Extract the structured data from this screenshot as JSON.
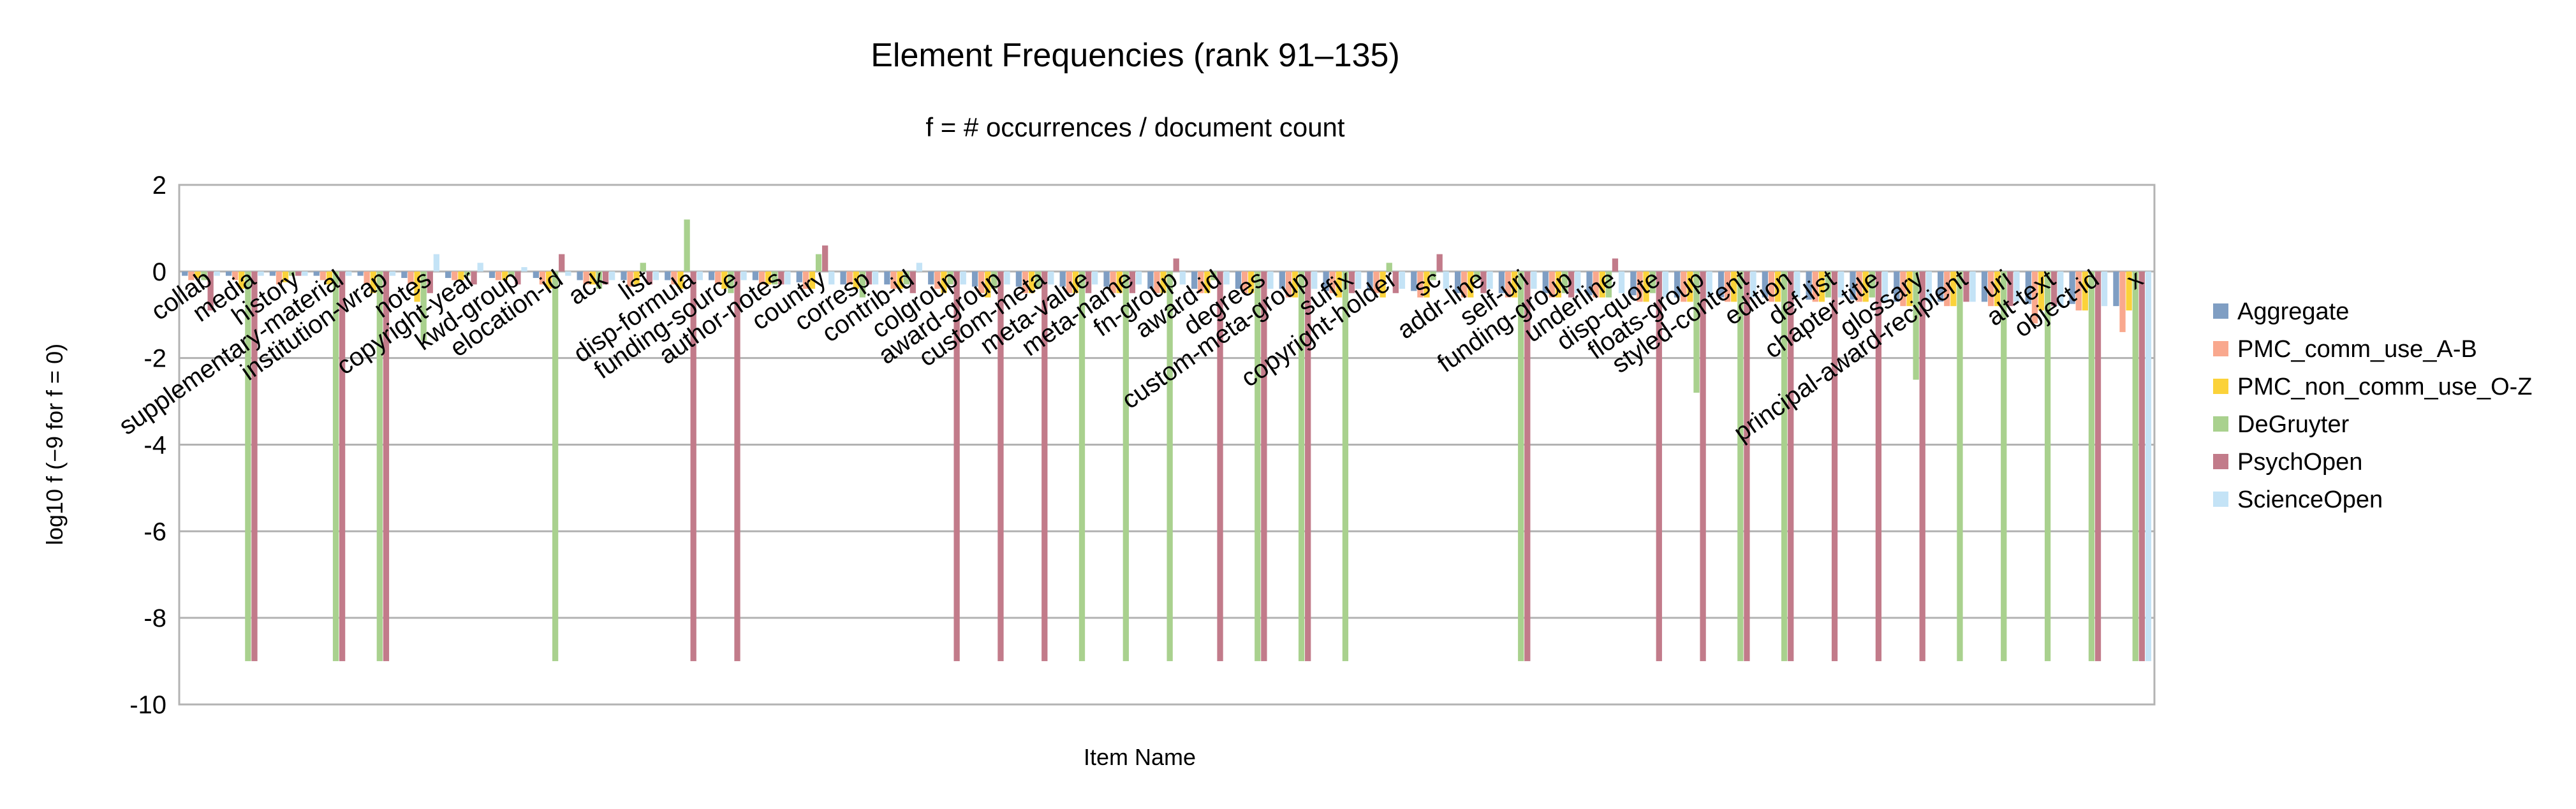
{
  "chart_data": {
    "type": "bar",
    "title": "Element Frequencies (rank 91–135)",
    "subtitle": "f = # occurrences / document count",
    "xlabel": "Item Name",
    "ylabel": "log10  f  (−9 for f = 0)",
    "ylim": [
      -10,
      2
    ],
    "yticks": [
      2,
      0,
      -2,
      -4,
      -6,
      -8,
      -10
    ],
    "grid": true,
    "legend_position": "right",
    "categories": [
      "collab",
      "media",
      "history",
      "supplementary-material",
      "institution-wrap",
      "notes",
      "copyright-year",
      "kwd-group",
      "elocation-id",
      "ack",
      "list",
      "disp-formula",
      "funding-source",
      "author-notes",
      "country",
      "corresp",
      "contrib-id",
      "colgroup",
      "award-group",
      "custom-meta",
      "meta-value",
      "meta-name",
      "fn-group",
      "award-id",
      "degrees",
      "custom-meta-group",
      "suffix",
      "copyright-holder",
      "sc",
      "addr-line",
      "self-uri",
      "funding-group",
      "underline",
      "disp-quote",
      "floats-group",
      "styled-content",
      "edition",
      "def-list",
      "chapter-title",
      "glossary",
      "principal-award-recipient",
      "uri",
      "alt-text",
      "object-id",
      "x"
    ],
    "series": [
      {
        "name": "Aggregate",
        "color": "#7f9ec3",
        "values": [
          -0.1,
          -0.1,
          -0.1,
          -0.1,
          -0.1,
          -0.15,
          -0.15,
          -0.15,
          -0.15,
          -0.2,
          -0.2,
          -0.2,
          -0.2,
          -0.2,
          -0.25,
          -0.3,
          -0.3,
          -0.3,
          -0.35,
          -0.35,
          -0.35,
          -0.35,
          -0.4,
          -0.4,
          -0.4,
          -0.4,
          -0.45,
          -0.45,
          -0.45,
          -0.5,
          -0.5,
          -0.5,
          -0.55,
          -0.55,
          -0.6,
          -0.6,
          -0.6,
          -0.65,
          -0.65,
          -0.7,
          -0.7,
          -0.7,
          -0.75,
          -0.75,
          -0.8
        ]
      },
      {
        "name": "PMC_comm_use_A-B",
        "color": "#f9a88e",
        "values": [
          -0.2,
          -0.2,
          -0.3,
          -0.2,
          -0.3,
          -0.3,
          -0.2,
          -0.2,
          -0.3,
          -0.3,
          -0.35,
          -0.3,
          -0.3,
          -0.3,
          -0.4,
          -0.3,
          -0.4,
          -0.4,
          -0.5,
          -0.5,
          -0.5,
          -0.5,
          -0.5,
          -0.5,
          -0.5,
          -0.6,
          -0.5,
          -0.5,
          -0.6,
          -0.6,
          -0.6,
          -0.6,
          -0.6,
          -0.7,
          -0.7,
          -0.7,
          -0.7,
          -0.7,
          -0.7,
          -0.8,
          -0.8,
          -0.8,
          -1.2,
          -0.9,
          -1.4
        ]
      },
      {
        "name": "PMC_non_comm_use_O-Z",
        "color": "#fbd23a",
        "values": [
          -0.15,
          -0.4,
          -0.25,
          -0.3,
          -0.5,
          -0.7,
          -0.2,
          -0.2,
          -0.4,
          -0.3,
          -0.3,
          -0.4,
          -0.4,
          -0.3,
          -0.4,
          -0.4,
          -0.4,
          -0.5,
          -0.6,
          -0.5,
          -0.5,
          -0.5,
          -0.5,
          -0.5,
          -0.5,
          -0.6,
          -0.6,
          -0.6,
          -0.6,
          -0.6,
          -0.6,
          -0.6,
          -0.6,
          -0.7,
          -0.7,
          -0.7,
          -0.7,
          -0.7,
          -0.7,
          -0.8,
          -0.8,
          -0.8,
          -0.9,
          -0.9,
          -0.9
        ]
      },
      {
        "name": "DeGruyter",
        "color": "#a9d18e",
        "values": [
          -0.2,
          -9,
          -0.1,
          -9,
          -9,
          -1.6,
          -0.1,
          -0.1,
          -9,
          -0.4,
          0.2,
          1.2,
          -0.5,
          -0.3,
          0.4,
          -0.6,
          -0.3,
          -0.3,
          -0.4,
          -0.4,
          -9,
          -9,
          -9,
          -0.2,
          -9,
          -9,
          -9,
          0.2,
          -0.2,
          -0.2,
          -9,
          -0.5,
          -0.6,
          -0.5,
          -2.8,
          -9,
          -9,
          -0.6,
          -0.6,
          -2.5,
          -9,
          -9,
          -9,
          -9,
          -9
        ]
      },
      {
        "name": "PsychOpen",
        "color": "#c27b8a",
        "values": [
          -0.9,
          -9,
          -0.1,
          -9,
          -9,
          -0.5,
          -0.3,
          -0.3,
          0.4,
          -0.3,
          -0.3,
          -9,
          -9,
          -0.3,
          0.6,
          -0.3,
          -0.5,
          -9,
          -9,
          -9,
          -0.5,
          -0.5,
          0.3,
          -9,
          -9,
          -9,
          -0.5,
          -0.5,
          0.4,
          -0.5,
          -9,
          -0.6,
          0.3,
          -9,
          -9,
          -9,
          -9,
          -9,
          -9,
          -9,
          -0.7,
          -0.8,
          -0.8,
          -9,
          -9
        ]
      },
      {
        "name": "ScienceOpen",
        "color": "#c4e3f6",
        "values": [
          -0.1,
          -0.1,
          -0.1,
          -0.1,
          -0.1,
          0.4,
          0.2,
          0.1,
          -0.1,
          -0.2,
          -0.2,
          -0.2,
          -0.2,
          -0.3,
          -0.3,
          -0.3,
          0.2,
          -0.3,
          -0.3,
          -0.3,
          -0.3,
          -0.3,
          -0.3,
          -0.3,
          -0.4,
          -0.4,
          -0.4,
          -0.4,
          -0.4,
          -0.4,
          -0.4,
          -0.5,
          -0.5,
          -0.6,
          -0.6,
          -0.6,
          -0.6,
          -0.6,
          -0.7,
          -0.7,
          -0.7,
          -0.7,
          -0.8,
          -0.8,
          -9
        ]
      }
    ]
  }
}
